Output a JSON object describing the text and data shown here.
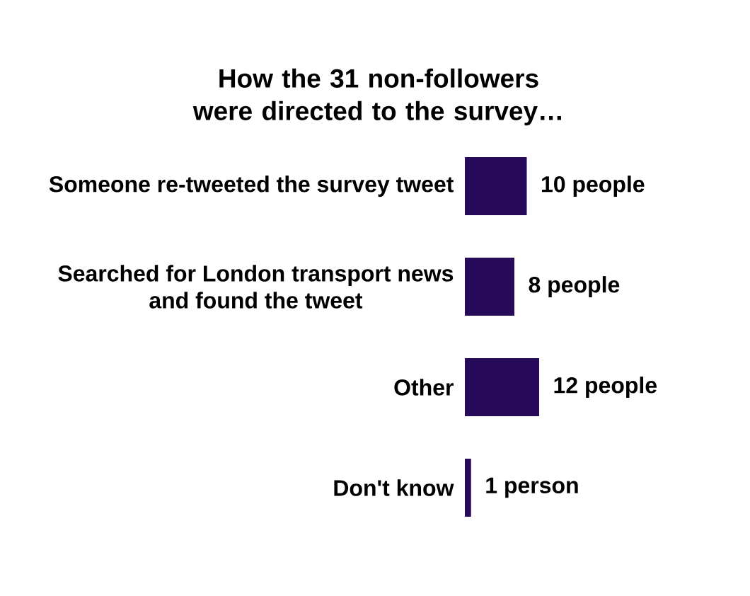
{
  "chart_data": {
    "type": "bar",
    "orientation": "horizontal",
    "title": "How the 31 non-followers were directed to the survey…",
    "categories": [
      "Someone re-tweeted the survey tweet",
      "Searched for London transport news and found the tweet",
      "Other",
      "Don't know"
    ],
    "values": [
      10,
      8,
      12,
      1
    ],
    "value_labels": [
      "10 people",
      "8 people",
      "12 people",
      "1 person"
    ],
    "color": "#280a5a"
  }
}
